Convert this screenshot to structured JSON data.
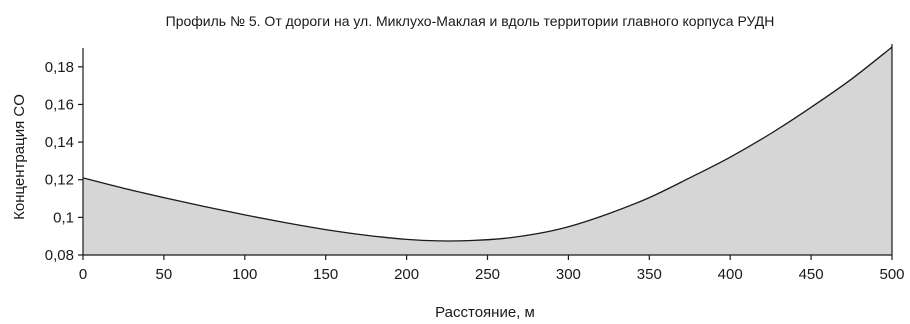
{
  "chart_data": {
    "type": "area",
    "title": "Профиль № 5. От дороги на ул. Миклухо-Маклая и вдоль территории главного корпуса РУДН",
    "xlabel": "Расстояние, м",
    "ylabel": "Концентрация CO",
    "xlim": [
      0,
      500
    ],
    "ylim": [
      0.08,
      0.19
    ],
    "x_ticks": [
      "0",
      "50",
      "100",
      "150",
      "200",
      "250",
      "300",
      "350",
      "400",
      "450",
      "500"
    ],
    "y_ticks": [
      "0,08",
      "0,1",
      "0,12",
      "0,14",
      "0,16",
      "0,18"
    ],
    "grid": false,
    "legend": "none",
    "fill_color": "#d6d6d6",
    "line_color": "#1a1a1a",
    "series": [
      {
        "x": [
          0,
          25,
          50,
          75,
          100,
          125,
          150,
          175,
          200,
          220,
          240,
          260,
          280,
          300,
          325,
          350,
          375,
          400,
          425,
          450,
          475,
          500
        ],
        "values": [
          0.121,
          0.1155,
          0.1105,
          0.1058,
          0.1013,
          0.0972,
          0.0935,
          0.0905,
          0.0883,
          0.0875,
          0.0877,
          0.0888,
          0.0912,
          0.095,
          0.102,
          0.1105,
          0.121,
          0.132,
          0.1445,
          0.1585,
          0.1735,
          0.1905
        ]
      }
    ]
  }
}
